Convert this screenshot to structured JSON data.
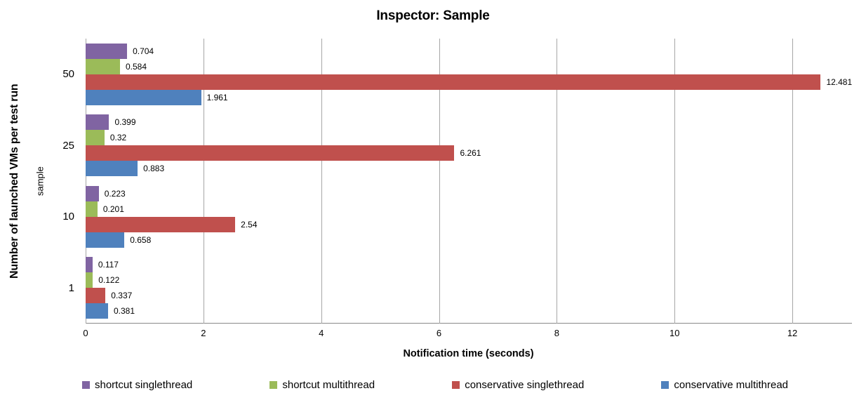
{
  "chart_data": {
    "type": "bar",
    "orientation": "horizontal",
    "title": "Inspector: Sample",
    "xlabel": "Notification time (seconds)",
    "ylabel": "Number of launched VMs per test run",
    "ylabel_secondary": "sample",
    "categories": [
      "50",
      "25",
      "10",
      "1"
    ],
    "series": [
      {
        "name": "shortcut singlethread",
        "color": "#8064A2",
        "values": [
          0.704,
          0.399,
          0.223,
          0.117
        ]
      },
      {
        "name": "shortcut multithread",
        "color": "#9BBB59",
        "values": [
          0.584,
          0.32,
          0.201,
          0.122
        ]
      },
      {
        "name": "conservative singlethread",
        "color": "#C0504D",
        "values": [
          12.481,
          6.261,
          2.54,
          0.337
        ]
      },
      {
        "name": "conservative multithread",
        "color": "#4F81BD",
        "values": [
          1.961,
          0.883,
          0.658,
          0.381
        ]
      }
    ],
    "xlim": [
      0,
      13
    ],
    "xticks": [
      0,
      2,
      4,
      6,
      8,
      10,
      12
    ],
    "grid": true,
    "data_labels": true,
    "legend_position": "bottom",
    "colors": {
      "gridline": "#A6A6A6",
      "axis_line": "#898989",
      "text": "#000000",
      "background": "#FFFFFF"
    }
  }
}
